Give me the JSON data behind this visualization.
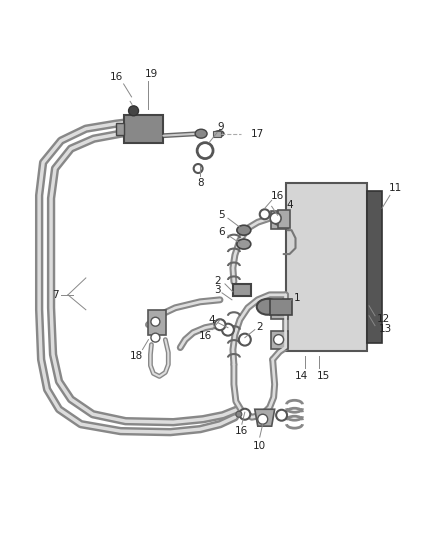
{
  "bg_color": "#ffffff",
  "tube_outer": "#888888",
  "tube_inner": "#cccccc",
  "tube_lw_outer": 5.5,
  "tube_lw_inner": 2.5,
  "component_fill": "#999999",
  "component_edge": "#444444",
  "condenser_fill": "#d0d0d0",
  "condenser_edge": "#555555",
  "drier_fill": "#555555",
  "label_fs": 7.5,
  "leader_color": "#888888",
  "leader_lw": 0.7
}
